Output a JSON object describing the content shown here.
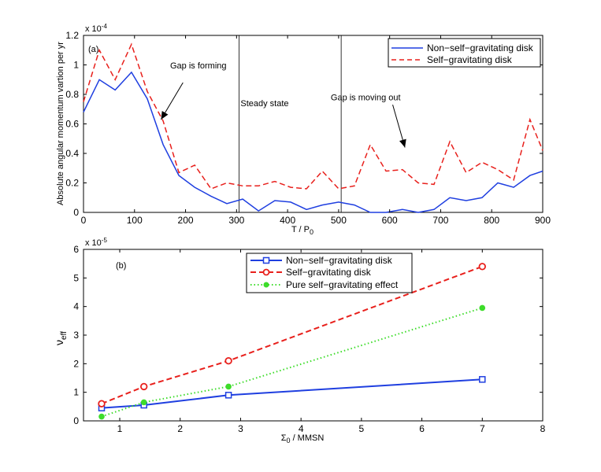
{
  "chart_data": [
    {
      "type": "line",
      "panel_label": "(a)",
      "xlabel": "T / P",
      "xlabel_sub": "0",
      "ylabel": "Absolute angular momentum vartion per yr",
      "y_exponent": "x 10",
      "y_exponent_power": "-4",
      "xlim": [
        0,
        900
      ],
      "ylim": [
        0,
        1.2
      ],
      "xticks": [
        0,
        100,
        200,
        300,
        400,
        500,
        600,
        700,
        800,
        900
      ],
      "yticks": [
        0,
        0.2,
        0.4,
        0.6,
        0.8,
        1,
        1.2
      ],
      "ytick_labels": [
        "0",
        "0.2",
        "0.4",
        "0.6",
        "0.8",
        "1",
        "1.2"
      ],
      "legend_position": "top-right",
      "vlines": [
        305,
        505
      ],
      "series": [
        {
          "name": "Non−self−gravitating disk",
          "color": "#1f3fe0",
          "style": "solid",
          "x": [
            0,
            31,
            62,
            94,
            125,
            156,
            187,
            218,
            250,
            281,
            312,
            343,
            375,
            406,
            437,
            468,
            500,
            531,
            562,
            593,
            625,
            656,
            687,
            718,
            750,
            781,
            812,
            843,
            875,
            900
          ],
          "y": [
            0.68,
            0.9,
            0.83,
            0.95,
            0.77,
            0.46,
            0.25,
            0.17,
            0.11,
            0.06,
            0.09,
            0.01,
            0.08,
            0.07,
            0.02,
            0.05,
            0.07,
            0.05,
            0.0,
            0.0,
            0.02,
            0.0,
            0.02,
            0.1,
            0.08,
            0.1,
            0.2,
            0.17,
            0.25,
            0.28
          ]
        },
        {
          "name": "Self−gravitating disk",
          "color": "#e8201c",
          "style": "dashed",
          "x": [
            0,
            31,
            62,
            94,
            125,
            156,
            187,
            218,
            250,
            281,
            312,
            343,
            375,
            406,
            437,
            468,
            500,
            531,
            562,
            593,
            625,
            656,
            687,
            718,
            750,
            781,
            812,
            843,
            875,
            900
          ],
          "y": [
            0.75,
            1.1,
            0.9,
            1.14,
            0.82,
            0.62,
            0.27,
            0.32,
            0.16,
            0.2,
            0.18,
            0.18,
            0.21,
            0.17,
            0.16,
            0.28,
            0.16,
            0.18,
            0.46,
            0.28,
            0.29,
            0.2,
            0.19,
            0.48,
            0.27,
            0.34,
            0.29,
            0.22,
            0.63,
            0.42
          ]
        }
      ],
      "annotations": [
        {
          "text": "Gap is forming",
          "x": 225,
          "y": 0.975
        },
        {
          "text": "Steady state",
          "x": 355,
          "y": 0.72
        },
        {
          "text": "Gap is moving out",
          "x": 553,
          "y": 0.76
        }
      ],
      "arrows": [
        {
          "from": [
            195,
            0.88
          ],
          "to": [
            152,
            0.63
          ]
        },
        {
          "from": [
            606,
            0.73
          ],
          "to": [
            630,
            0.44
          ]
        }
      ]
    },
    {
      "type": "line",
      "panel_label": "(b)",
      "xlabel": "Σ",
      "xlabel_sub": "0",
      "xlabel_rest": " / MMSN",
      "ylabel": "ν",
      "ylabel_sub": "eff",
      "y_exponent": "x 10",
      "y_exponent_power": "-5",
      "xlim": [
        0.4,
        8
      ],
      "ylim": [
        0,
        6
      ],
      "xticks": [
        1,
        2,
        3,
        4,
        5,
        6,
        7,
        8
      ],
      "yticks": [
        0,
        1,
        2,
        3,
        4,
        5,
        6
      ],
      "legend_position": "top-center",
      "series": [
        {
          "name": "Non−self−gravitating disk",
          "color": "#1f3fe0",
          "style": "solid",
          "marker": "square",
          "x": [
            0.7,
            1.4,
            2.8,
            7.0
          ],
          "y": [
            0.45,
            0.55,
            0.9,
            1.45
          ]
        },
        {
          "name": "Self−gravitating disk",
          "color": "#e8201c",
          "style": "dashed",
          "marker": "circle",
          "x": [
            0.7,
            1.4,
            2.8,
            7.0
          ],
          "y": [
            0.6,
            1.2,
            2.1,
            5.4
          ]
        },
        {
          "name": "Pure self−gravitating effect",
          "color": "#3ddc2a",
          "style": "dotted",
          "marker": "dot",
          "x": [
            0.7,
            1.4,
            2.8,
            7.0
          ],
          "y": [
            0.15,
            0.65,
            1.2,
            3.95
          ]
        }
      ]
    }
  ]
}
